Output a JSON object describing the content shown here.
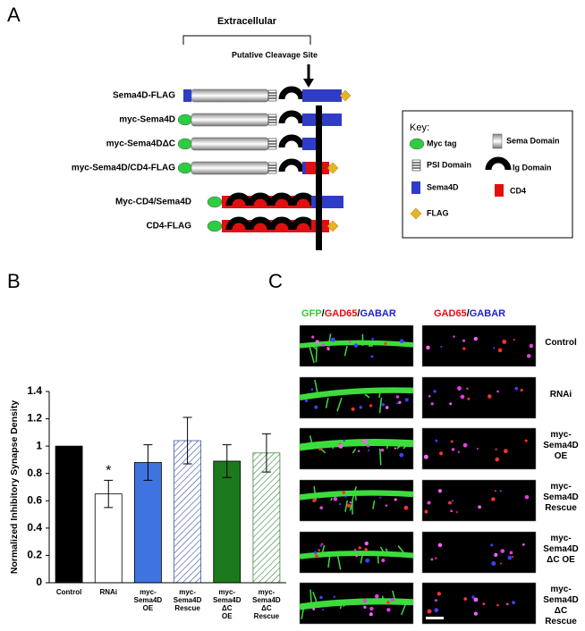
{
  "panel_a": {
    "letter": "A",
    "region_label": "Extracellular",
    "cleavage_label": "Putative Cleavage Site",
    "constructs": [
      "Sema4D-FLAG",
      "myc-Sema4D",
      "myc-Sema4DΔC",
      "myc-Sema4D/CD4-FLAG",
      "Myc-CD4/Sema4D",
      "CD4-FLAG"
    ],
    "key": {
      "title": "Key:",
      "items": [
        "Myc tag",
        "Sema Domain",
        "PSI Domain",
        "Ig Domain",
        "Sema4D",
        "CD4",
        "FLAG"
      ]
    }
  },
  "panel_b_letter": "B",
  "chart_data": {
    "type": "bar",
    "y_label": "Normalized Inhibitory  Synapse Density",
    "categories": [
      "Control",
      "RNAi",
      "myc-\nSema4D\nOE",
      "myc-\nSema4D\nRescue",
      "myc-\nSema4D\nΔC\nOE",
      "myc-\nSema4D\nΔC\nRescue"
    ],
    "values": [
      1,
      0.65,
      0.88,
      1.04,
      0.89,
      0.95
    ],
    "errors": [
      null,
      0.1,
      0.13,
      0.17,
      0.12,
      0.14
    ],
    "significance_labels": [
      null,
      "*",
      null,
      null,
      null,
      null
    ],
    "colors": [
      "#000000",
      "#ffffff",
      "#3f74e0",
      "#3f5aa8",
      "#1c7a1c",
      "#3f8a3f"
    ],
    "hatched": [
      false,
      false,
      false,
      true,
      false,
      true
    ],
    "ylim": [
      0,
      1.4
    ],
    "yticks": [
      0,
      0.2,
      0.4,
      0.6,
      0.8,
      1,
      1.2,
      1.4
    ]
  },
  "panel_c": {
    "letter": "C",
    "left_header": [
      "GFP",
      "/",
      "GAD65",
      "/",
      "GABAR"
    ],
    "right_header": [
      "GAD65",
      "/",
      "GABAR"
    ],
    "rows": [
      "Control",
      "RNAi",
      "myc-\nSema4D\nOE",
      "myc-\nSema4D\nRescue",
      "myc-\nSema4D\nΔC OE",
      "myc-\nSema4D\nΔC\nRescue"
    ]
  }
}
